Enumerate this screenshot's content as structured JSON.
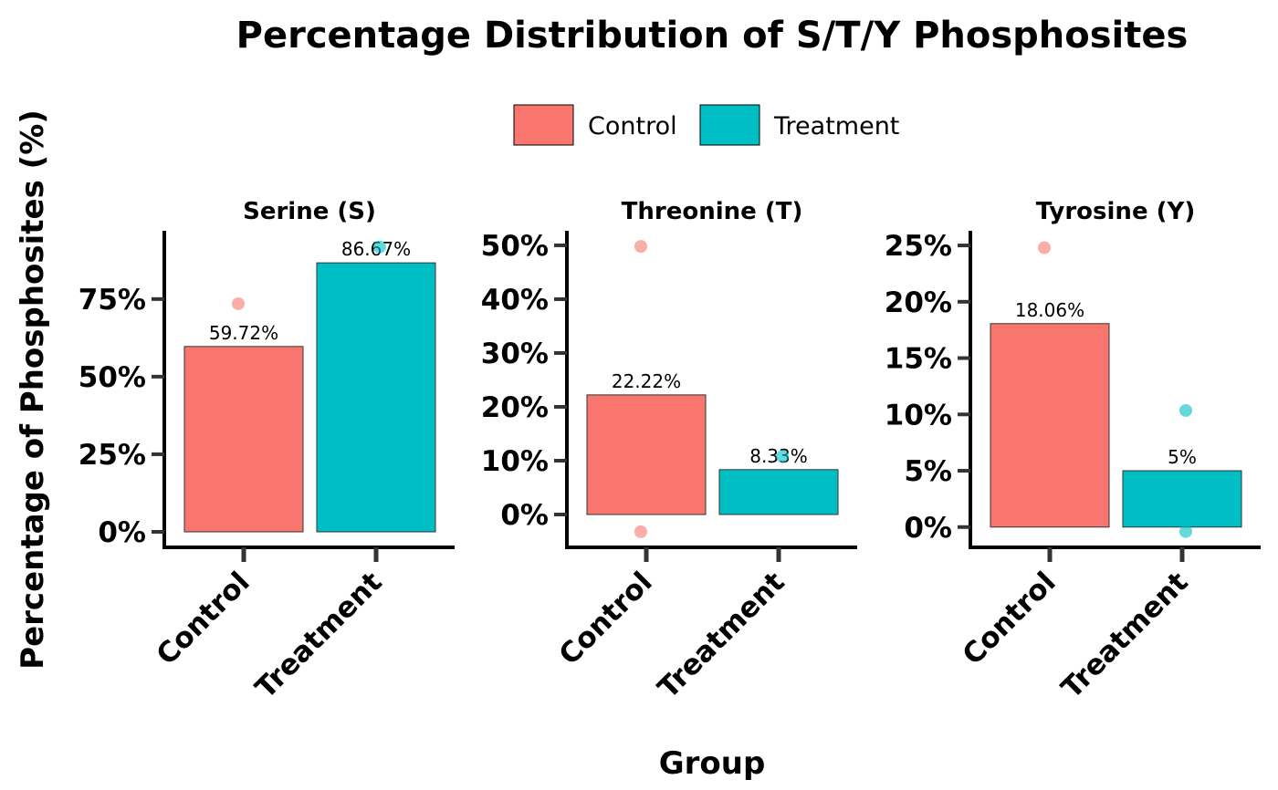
{
  "chart_data": {
    "type": "bar",
    "title": "Percentage Distribution of S/T/Y Phosphosites",
    "xlabel": "Group",
    "ylabel": "Percentage of Phosphosites (%)",
    "legend": {
      "placement": "top",
      "entries": [
        "Control",
        "Treatment"
      ]
    },
    "colors": {
      "Control": "#F8766D",
      "Treatment": "#00BFC4"
    },
    "grid": false,
    "categories": [
      "Control",
      "Treatment"
    ],
    "panels": [
      {
        "name": "Serine (S)",
        "ylim": [
          -5,
          97
        ],
        "yticks": [
          0,
          25,
          50,
          75
        ],
        "ytick_labels": [
          "0%",
          "25%",
          "50%",
          "75%"
        ],
        "values": [
          59.72,
          86.67
        ],
        "value_labels": [
          "59.72%",
          "86.67%"
        ],
        "points": {
          "Control": [
            73.5
          ],
          "Treatment": [
            91.8
          ]
        }
      },
      {
        "name": "Threonine (T)",
        "ylim": [
          -6.1,
          52.7
        ],
        "yticks": [
          0,
          10,
          20,
          30,
          40,
          50
        ],
        "ytick_labels": [
          "0%",
          "10%",
          "20%",
          "30%",
          "40%",
          "50%"
        ],
        "values": [
          22.22,
          8.33
        ],
        "value_labels": [
          "22.22%",
          "8.33%"
        ],
        "points": {
          "Control": [
            49.8,
            -3.2
          ],
          "Treatment": [
            10.8
          ]
        }
      },
      {
        "name": "Tyrosine (Y)",
        "ylim": [
          -1.8,
          26.3
        ],
        "yticks": [
          0,
          5,
          10,
          15,
          20,
          25
        ],
        "ytick_labels": [
          "0%",
          "5%",
          "10%",
          "15%",
          "20%",
          "25%"
        ],
        "values": [
          18.06,
          5
        ],
        "value_labels": [
          "18.06%",
          "5%"
        ],
        "points": {
          "Control": [
            24.8
          ],
          "Treatment": [
            10.35,
            -0.4
          ]
        }
      }
    ]
  }
}
